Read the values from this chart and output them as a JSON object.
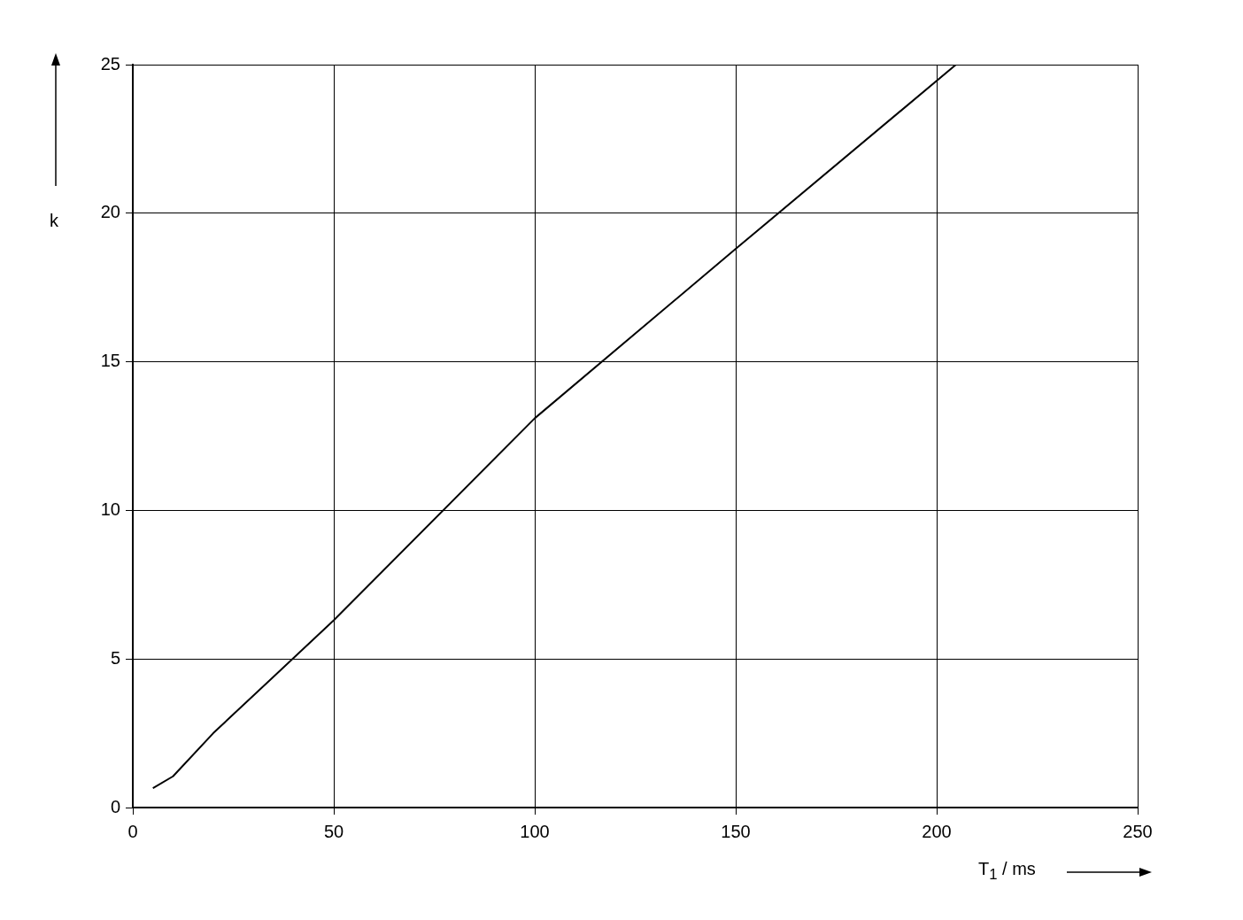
{
  "chart_data": {
    "type": "line",
    "xlabel": "T$_{1}$ / ms",
    "ylabel": "k",
    "x": [
      5,
      10,
      20,
      50,
      100,
      150,
      204.8
    ],
    "values": [
      0.65,
      1.05,
      2.5,
      6.3,
      13.1,
      18.8,
      25
    ],
    "color": "#000000",
    "marker": "none",
    "line_style": "solid",
    "xlim": [
      0,
      250
    ],
    "xticks": [
      0,
      50,
      100,
      150,
      200,
      250
    ],
    "ylim": [
      0,
      25
    ],
    "yticks": [
      0,
      5,
      10,
      15,
      20,
      25
    ],
    "grid": true
  }
}
